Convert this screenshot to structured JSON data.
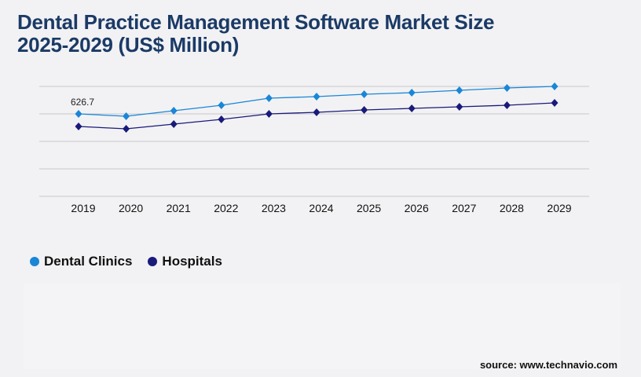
{
  "title_line1": "Dental Practice Management Software Market Size",
  "title_line2": "2025-2029 (US$ Million)",
  "source": "source: www.technavio.com",
  "chart_data": {
    "type": "line",
    "title": "Dental Practice Management Software Market Size 2025-2029 (US$ Million)",
    "categories": [
      "2019",
      "2020",
      "2021",
      "2022",
      "2023",
      "2024",
      "2025",
      "2026",
      "2027",
      "2028",
      "2029"
    ],
    "series": [
      {
        "name": "Dental Clinics",
        "color": "#1a86d6",
        "values": [
          626.7,
          608.8,
          650.6,
          692.4,
          746.1,
          758.1,
          776.0,
          787.9,
          805.8,
          823.7,
          835.7
        ]
      },
      {
        "name": "Hospitals",
        "color": "#1a1a7a",
        "values": [
          531.2,
          513.3,
          549.1,
          585.0,
          626.7,
          638.7,
          656.6,
          668.5,
          680.5,
          692.4,
          710.3
        ]
      }
    ],
    "annotations": [
      {
        "category": "2019",
        "series": "Dental Clinics",
        "label": "626.7"
      }
    ],
    "ylim": [
      0,
      835.7
    ],
    "grid": true,
    "legend": "bottom-left"
  }
}
